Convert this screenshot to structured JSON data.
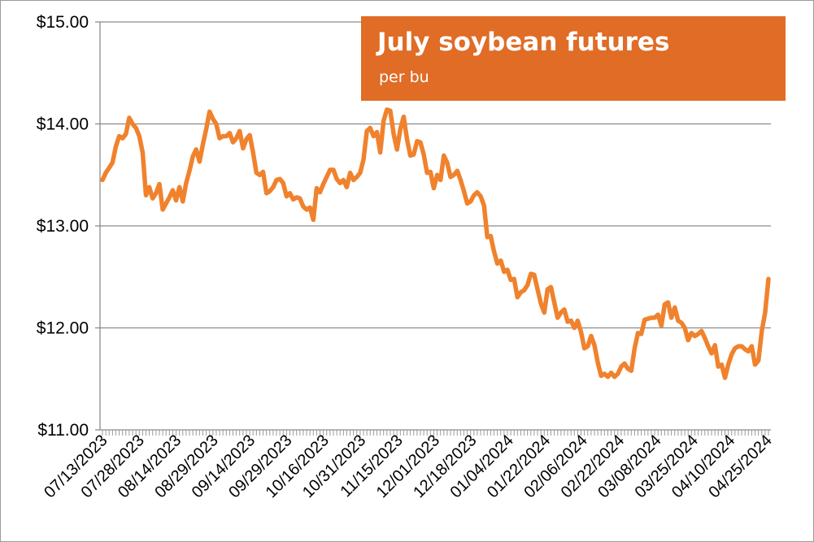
{
  "chart_data": {
    "type": "line",
    "title": "July soybean futures",
    "subtitle": "per bu",
    "xlabel": "",
    "ylabel": "",
    "ylim": [
      11,
      15
    ],
    "yticks": [
      "$11.00",
      "$12.00",
      "$13.00",
      "$14.00",
      "$15.00"
    ],
    "ytick_values": [
      11,
      12,
      13,
      14,
      15
    ],
    "xtick_labels": [
      "07/13/2023",
      "07/28/2023",
      "08/14/2023",
      "08/29/2023",
      "09/14/2023",
      "09/29/2023",
      "10/16/2023",
      "10/31/2023",
      "11/15/2023",
      "12/01/2023",
      "12/18/2023",
      "01/04/2024",
      "01/22/2024",
      "02/06/2024",
      "02/22/2024",
      "03/08/2024",
      "03/25/2024",
      "04/10/2024",
      "04/25/2024"
    ],
    "grid": true,
    "line_color": "#f0822d",
    "series": [
      {
        "values": [
          13.45,
          13.52,
          13.57,
          13.62,
          13.78,
          13.88,
          13.86,
          13.9,
          14.06,
          14.0,
          13.96,
          13.88,
          13.72,
          13.3,
          13.38,
          13.27,
          13.32,
          13.41,
          13.16,
          13.22,
          13.28,
          13.35,
          13.25,
          13.38,
          13.24,
          13.42,
          13.54,
          13.68,
          13.75,
          13.63,
          13.8,
          13.95,
          14.12,
          14.05,
          14.0,
          13.86,
          13.88,
          13.88,
          13.91,
          13.82,
          13.86,
          13.93,
          13.76,
          13.85,
          13.89,
          13.72,
          13.52,
          13.5,
          13.53,
          13.32,
          13.34,
          13.38,
          13.45,
          13.46,
          13.42,
          13.29,
          13.32,
          13.26,
          13.28,
          13.27,
          13.19,
          13.16,
          13.18,
          13.06,
          13.37,
          13.33,
          13.41,
          13.48,
          13.55,
          13.55,
          13.46,
          13.42,
          13.45,
          13.38,
          13.52,
          13.45,
          13.48,
          13.52,
          13.65,
          13.93,
          13.96,
          13.88,
          13.92,
          13.72,
          14.03,
          14.14,
          14.13,
          13.9,
          13.75,
          13.95,
          14.07,
          13.85,
          13.69,
          13.7,
          13.83,
          13.82,
          13.7,
          13.52,
          13.53,
          13.37,
          13.5,
          13.45,
          13.69,
          13.62,
          13.48,
          13.5,
          13.54,
          13.45,
          13.34,
          13.22,
          13.24,
          13.3,
          13.33,
          13.29,
          13.2,
          12.89,
          12.9,
          12.75,
          12.63,
          12.66,
          12.55,
          12.57,
          12.47,
          12.48,
          12.3,
          12.35,
          12.37,
          12.42,
          12.53,
          12.52,
          12.38,
          12.24,
          12.15,
          12.38,
          12.4,
          12.25,
          12.1,
          12.15,
          12.18,
          12.06,
          12.07,
          12.0,
          12.07,
          11.96,
          11.8,
          11.82,
          11.92,
          11.83,
          11.66,
          11.53,
          11.55,
          11.52,
          11.56,
          11.52,
          11.55,
          11.62,
          11.65,
          11.6,
          11.58,
          11.8,
          11.95,
          11.94,
          12.08,
          12.09,
          12.1,
          12.1,
          12.13,
          12.02,
          12.23,
          12.25,
          12.1,
          12.2,
          12.07,
          12.05,
          12.0,
          11.88,
          11.95,
          11.92,
          11.94,
          11.97,
          11.9,
          11.82,
          11.75,
          11.83,
          11.62,
          11.64,
          11.51,
          11.64,
          11.74,
          11.8,
          11.82,
          11.82,
          11.79,
          11.77,
          11.82,
          11.64,
          11.68,
          11.97,
          12.15,
          12.48
        ]
      }
    ]
  }
}
